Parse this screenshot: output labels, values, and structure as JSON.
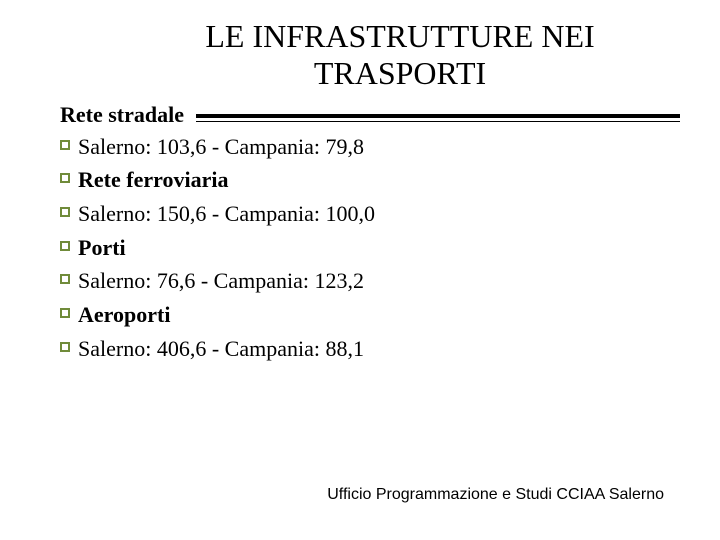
{
  "title": "LE INFRASTRUTTURE NEI TRASPORTI",
  "subtitle": "Rete stradale",
  "bullet_marker_border_color": "#708b3a",
  "content_lines": [
    {
      "text": "Salerno: 103,6 - Campania: 79,8",
      "bold": false
    },
    {
      "text": "Rete ferroviaria",
      "bold": true
    },
    {
      "text": "Salerno: 150,6 - Campania: 100,0",
      "bold": false
    },
    {
      "text": "Porti",
      "bold": true
    },
    {
      "text": "Salerno: 76,6 - Campania: 123,2",
      "bold": false
    },
    {
      "text": "Aeroporti",
      "bold": true
    },
    {
      "text": "Salerno: 406,6 - Campania: 88,1",
      "bold": false
    }
  ],
  "footer": "Ufficio Programmazione e Studi CCIAA Salerno",
  "colors": {
    "background": "#ffffff",
    "text": "#000000",
    "rule": "#000000"
  },
  "typography": {
    "title_fontsize": 32,
    "body_fontsize": 22,
    "footer_fontsize": 16,
    "title_family": "serif",
    "body_family": "serif",
    "footer_family": "sans-serif"
  }
}
